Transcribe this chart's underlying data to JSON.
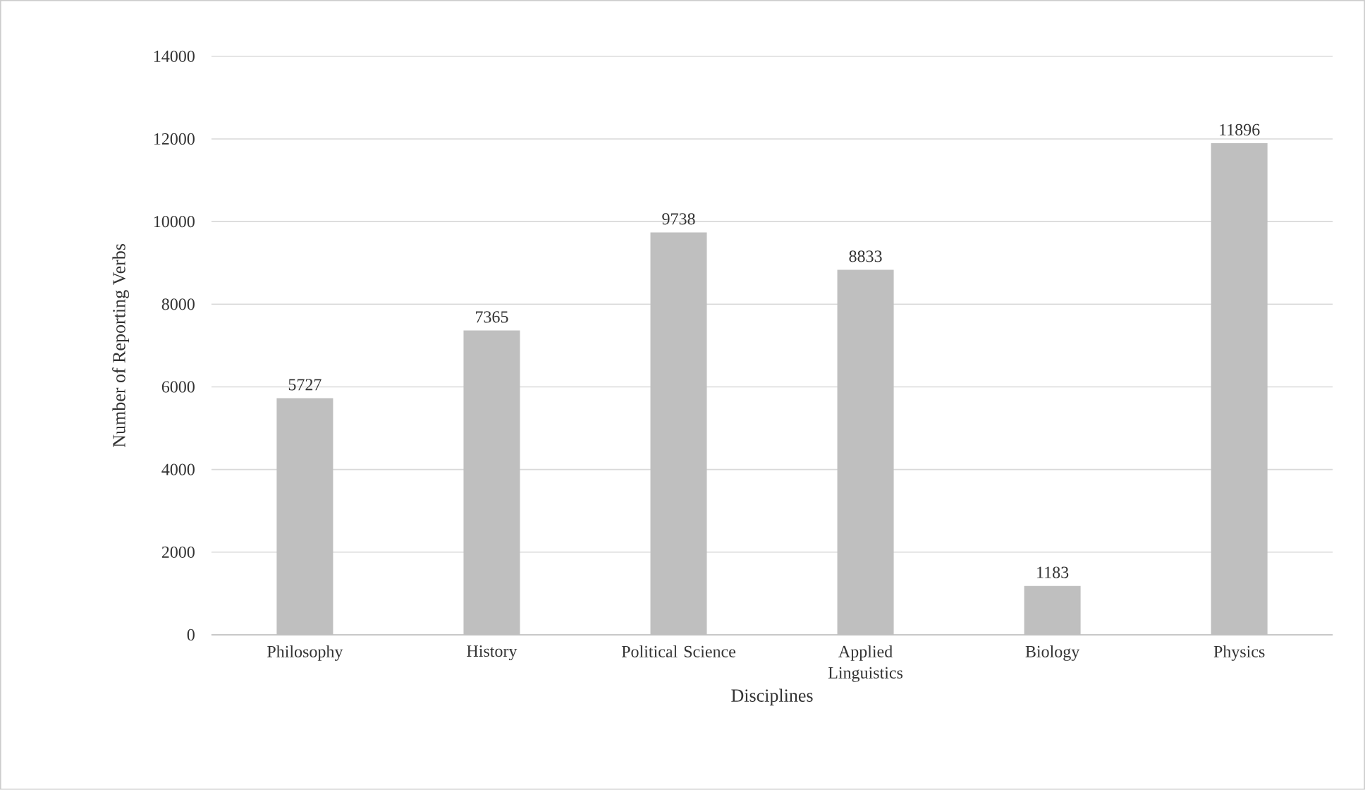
{
  "chart_data": {
    "type": "bar",
    "xlabel": "Disciplines",
    "ylabel": "Number of Reporting Verbs",
    "categories": [
      "Philosophy",
      "History",
      "Political Science",
      "Applied Linguistics",
      "Biology",
      "Physics"
    ],
    "values": [
      5727,
      7365,
      9738,
      8833,
      1183,
      11896
    ],
    "color": "#bfbfbf",
    "ylim": [
      0,
      14000
    ],
    "yticks": [
      0,
      2000,
      4000,
      6000,
      8000,
      10000,
      12000,
      14000
    ],
    "grid": "y",
    "data_labels": true
  }
}
